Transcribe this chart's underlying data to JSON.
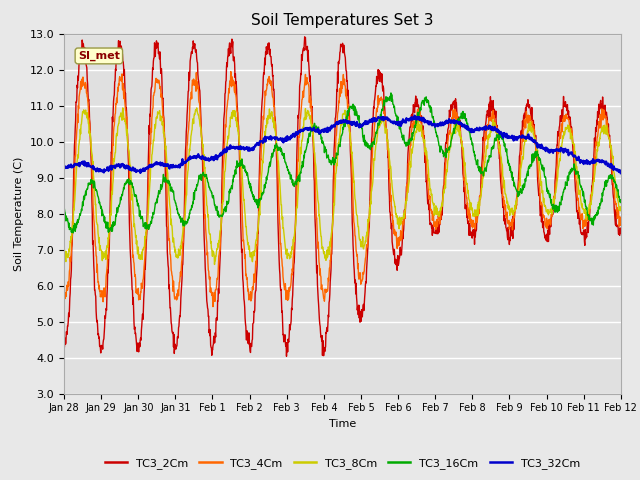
{
  "title": "Soil Temperatures Set 3",
  "xlabel": "Time",
  "ylabel": "Soil Temperature (C)",
  "ylim": [
    3.0,
    13.0
  ],
  "yticks": [
    3.0,
    4.0,
    5.0,
    6.0,
    7.0,
    8.0,
    9.0,
    10.0,
    11.0,
    12.0,
    13.0
  ],
  "bg_color": "#e8e8e8",
  "plot_bg_color": "#e0e0e0",
  "legend_entries": [
    "TC3_2Cm",
    "TC3_4Cm",
    "TC3_8Cm",
    "TC3_16Cm",
    "TC3_32Cm"
  ],
  "legend_colors": [
    "#cc0000",
    "#ff6600",
    "#cccc00",
    "#00aa00",
    "#0000cc"
  ],
  "annotation_text": "SI_met",
  "annotation_color": "#8b0000",
  "annotation_bg": "#ffffcc",
  "xticklabels": [
    "Jan 28",
    "Jan 29",
    "Jan 30",
    "Jan 31",
    "Feb 1",
    "Feb 2",
    "Feb 3",
    "Feb 4",
    "Feb 5",
    "Feb 6",
    "Feb 7",
    "Feb 8",
    "Feb 9",
    "Feb 10",
    "Feb 11",
    "Feb 12"
  ],
  "n_points": 1440
}
